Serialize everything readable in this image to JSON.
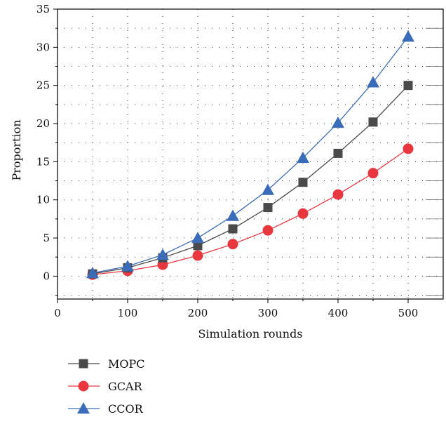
{
  "chart_data": {
    "type": "line",
    "title": "",
    "xlabel": "Simulation rounds",
    "ylabel": "Proportion",
    "xlim": [
      0,
      550
    ],
    "ylim": [
      -3,
      35
    ],
    "xticks": [
      0,
      100,
      200,
      300,
      400,
      500
    ],
    "yticks": [
      0,
      5,
      10,
      15,
      20,
      25,
      30,
      35
    ],
    "grid": "dotted",
    "legend_position": "bottom-left, below plot",
    "x": [
      50,
      100,
      150,
      200,
      250,
      300,
      350,
      400,
      450,
      500
    ],
    "series": [
      {
        "name": "MOPC",
        "values": [
          0.3,
          1.1,
          2.4,
          4.0,
          6.2,
          9.0,
          12.3,
          16.1,
          20.2,
          25.0
        ],
        "color": "#4a4a4a",
        "marker": "square"
      },
      {
        "name": "GCAR",
        "values": [
          0.2,
          0.7,
          1.5,
          2.7,
          4.2,
          6.0,
          8.2,
          10.7,
          13.5,
          16.7
        ],
        "color": "#e8373f",
        "marker": "circle"
      },
      {
        "name": "CCOR",
        "values": [
          0.4,
          1.3,
          2.8,
          5.0,
          7.9,
          11.3,
          15.5,
          20.1,
          25.4,
          31.4
        ],
        "color": "#3b6cb7",
        "marker": "triangle"
      }
    ]
  }
}
